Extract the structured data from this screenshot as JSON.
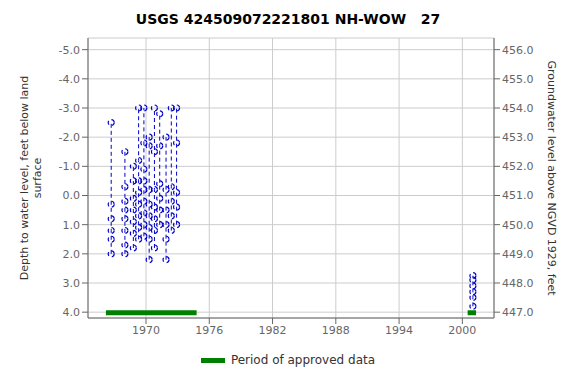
{
  "chart_data": {
    "type": "line",
    "title": "USGS 424509072221801 NH-WOW   27",
    "ylabel": "Depth to water level, feet below land\nsurface",
    "y2label": "Groundwater level above NGVD 1929, feet",
    "xlim": [
      1964.5,
      2003
    ],
    "xticks": [
      1970,
      1976,
      1982,
      1988,
      1994,
      2000
    ],
    "ylim": [
      4.2,
      -5.4
    ],
    "yticks": [
      {
        "value": -5.0,
        "label": "-5.0"
      },
      {
        "value": -4.0,
        "label": "-4.0"
      },
      {
        "value": -3.0,
        "label": "-3.0"
      },
      {
        "value": -2.0,
        "label": "-2.0"
      },
      {
        "value": -1.0,
        "label": "-1.0"
      },
      {
        "value": 0.0,
        "label": "0.0"
      },
      {
        "value": 1.0,
        "label": "1.0"
      },
      {
        "value": 2.0,
        "label": "2.0"
      },
      {
        "value": 3.0,
        "label": "3.0"
      },
      {
        "value": 4.0,
        "label": "4.0"
      }
    ],
    "y2lim": [
      446.8,
      456.4
    ],
    "y2ticks": [
      {
        "value": 447.0,
        "label": "447.0"
      },
      {
        "value": 448.0,
        "label": "448.0"
      },
      {
        "value": 449.0,
        "label": "449.0"
      },
      {
        "value": 450.0,
        "label": "450.0"
      },
      {
        "value": 451.0,
        "label": "451.0"
      },
      {
        "value": 452.0,
        "label": "452.0"
      },
      {
        "value": 453.0,
        "label": "453.0"
      },
      {
        "value": 454.0,
        "label": "454.0"
      },
      {
        "value": 455.0,
        "label": "455.0"
      },
      {
        "value": 456.0,
        "label": "456.0"
      }
    ],
    "grid": true,
    "color": "#0000cc",
    "line_style": "dashed",
    "marker": "circle",
    "series": [
      {
        "x": [
          1966.7,
          1966.7,
          1966.7,
          1966.7,
          1966.7,
          1966.7
        ],
        "values": [
          2.0,
          1.5,
          1.2,
          0.8,
          0.3,
          -2.5
        ]
      },
      {
        "x": [
          1968.0,
          1968.0,
          1968.0,
          1968.0,
          1968.0,
          1968.0,
          1968.0,
          1968.0
        ],
        "values": [
          2.0,
          1.7,
          1.2,
          0.8,
          0.5,
          0.2,
          -0.3,
          -1.5
        ]
      },
      {
        "x": [
          1968.8,
          1968.8,
          1968.8,
          1968.8,
          1968.8,
          1968.8,
          1968.8
        ],
        "values": [
          1.8,
          1.3,
          0.9,
          0.5,
          0.1,
          -0.5,
          -1.0
        ]
      },
      {
        "x": [
          1969.3,
          1969.3,
          1969.3,
          1969.3,
          1969.3,
          1969.3,
          1969.3,
          1969.3
        ],
        "values": [
          1.5,
          1.1,
          0.7,
          0.3,
          -0.1,
          -0.5,
          -1.2,
          -3.0
        ]
      },
      {
        "x": [
          1969.8,
          1969.8,
          1969.8,
          1969.8,
          1969.8,
          1969.8,
          1969.8,
          1969.8,
          1969.8
        ],
        "values": [
          1.4,
          1.0,
          0.6,
          0.2,
          -0.2,
          -0.5,
          -0.9,
          -1.8,
          -3.0
        ]
      },
      {
        "x": [
          1970.3,
          1970.3,
          1970.3,
          1970.3,
          1970.3,
          1970.3,
          1970.3,
          1970.3
        ],
        "values": [
          2.2,
          1.5,
          1.1,
          0.7,
          0.3,
          -0.2,
          -1.7,
          -2.0
        ]
      },
      {
        "x": [
          1970.8,
          1970.8,
          1970.8,
          1970.8,
          1970.8,
          1970.8,
          1970.8
        ],
        "values": [
          1.8,
          1.2,
          0.8,
          0.4,
          -0.2,
          -1.5,
          -3.0
        ]
      },
      {
        "x": [
          1971.3,
          1971.3,
          1971.3,
          1971.3,
          1971.3,
          1971.3
        ],
        "values": [
          1.0,
          0.5,
          0.1,
          -0.4,
          -1.7,
          -2.8
        ]
      },
      {
        "x": [
          1971.9,
          1971.9,
          1971.9,
          1971.9,
          1971.9,
          1971.9
        ],
        "values": [
          2.2,
          1.5,
          1.0,
          0.5,
          -0.2,
          -2.0
        ]
      },
      {
        "x": [
          1972.4,
          1972.4,
          1972.4,
          1972.4,
          1972.4
        ],
        "values": [
          1.2,
          0.7,
          0.2,
          -0.3,
          -3.0
        ]
      },
      {
        "x": [
          1972.9,
          1972.9,
          1972.9,
          1972.9,
          1972.9
        ],
        "values": [
          1.0,
          0.4,
          -0.1,
          -1.8,
          -3.0
        ]
      },
      {
        "x": [
          2001.0,
          2001.0,
          2001.0,
          2001.0,
          2001.0,
          2001.0
        ],
        "values": [
          3.8,
          3.5,
          3.3,
          3.1,
          2.9,
          2.75
        ]
      }
    ],
    "approved_periods": {
      "name": "Period of approved data",
      "color": "#008000",
      "y": 4.02,
      "ranges": [
        [
          1966.2,
          1974.8
        ],
        [
          2000.5,
          2001.3
        ]
      ]
    }
  }
}
